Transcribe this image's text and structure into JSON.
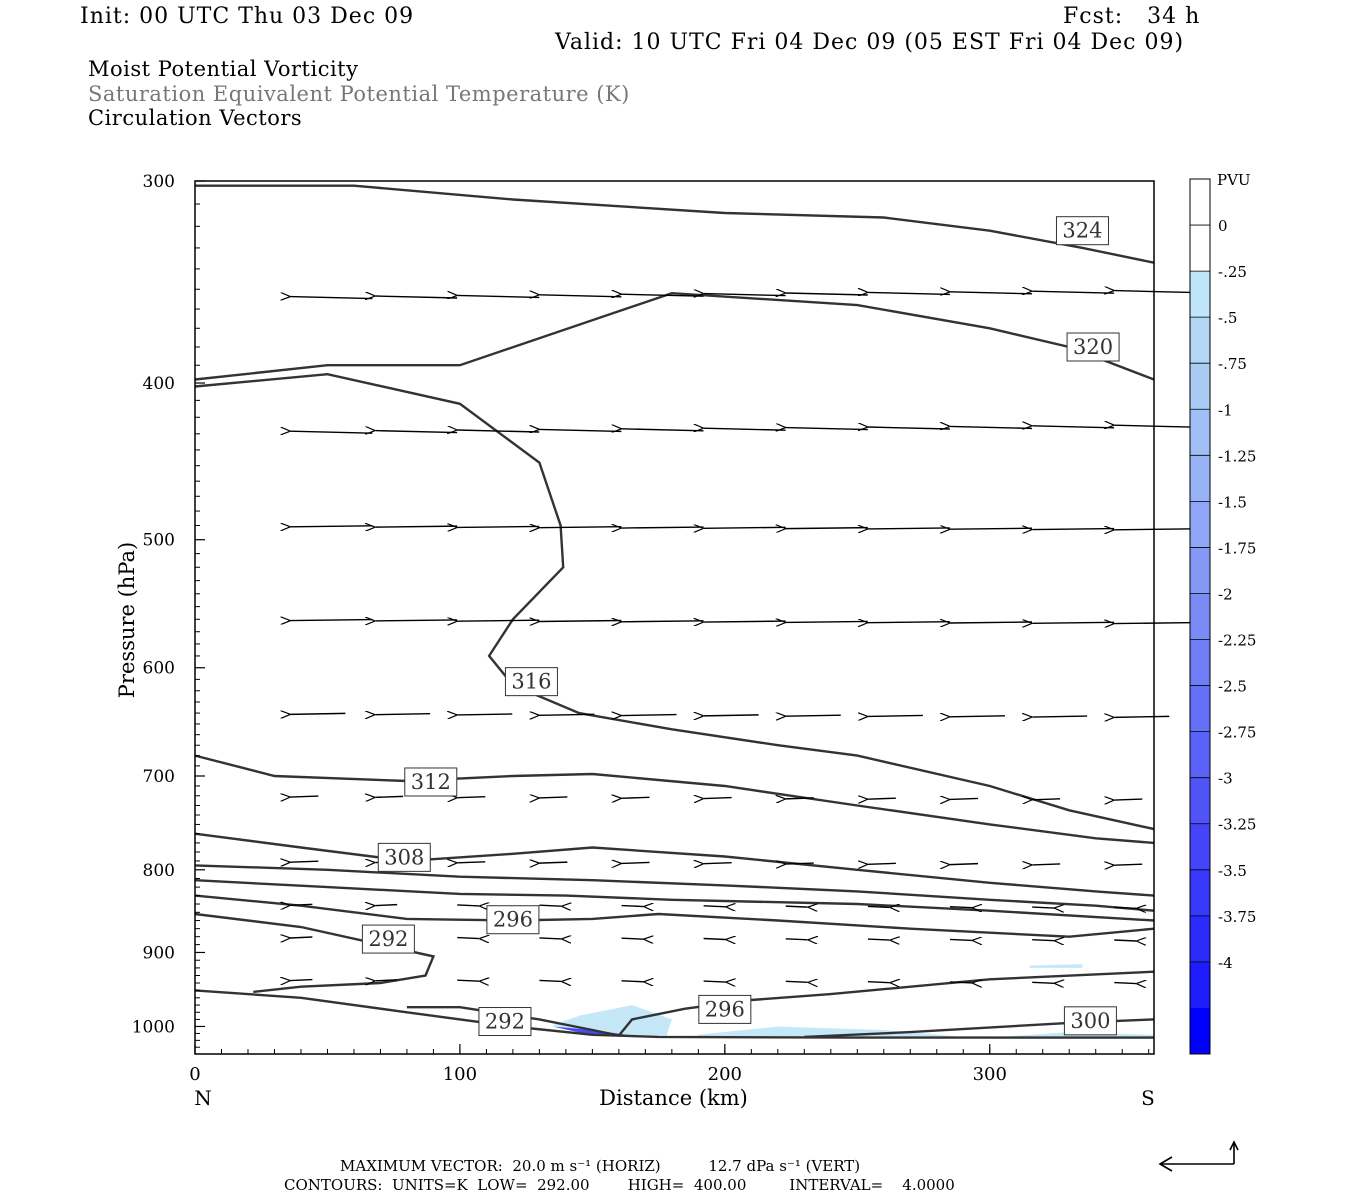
{
  "header": {
    "init": "Init: 00 UTC Thu 03 Dec 09",
    "fcst": "Fcst:   34 h",
    "valid": "Valid: 10 UTC Fri 04 Dec 09 (05 EST Fri 04 Dec 09)"
  },
  "titles": [
    "Moist Potential Vorticity",
    "Saturation Equivalent Potential Temperature (K)",
    "Circulation Vectors"
  ],
  "colors": {
    "contour": "#333333",
    "vector": "#000000",
    "title_secondary": "#777777"
  },
  "chart_data": {
    "type": "cross-section",
    "xlabel": "Distance (km)",
    "ylabel": "Pressure (hPa)",
    "xlim": [
      0,
      362
    ],
    "ylim": [
      1040,
      300
    ],
    "y_scale": "log-pressure",
    "x_ticks": [
      0,
      100,
      200,
      300
    ],
    "y_ticks": [
      300,
      400,
      500,
      600,
      700,
      800,
      900,
      1000
    ],
    "endpoint_labels": {
      "left": "N",
      "right": "S"
    },
    "colorbar": {
      "unit": "PVU",
      "labels": [
        "0",
        "-.25",
        "-.5",
        "-.75",
        "-1",
        "-1.25",
        "-1.5",
        "-1.75",
        "-2",
        "-2.25",
        "-2.5",
        "-2.75",
        "-3",
        "-3.25",
        "-3.5",
        "-3.75",
        "-4"
      ],
      "colors": [
        "#ffffff",
        "#ffffff",
        "#bfe6f8",
        "#b2d6f4",
        "#a9cbf3",
        "#a1bff4",
        "#98b3f5",
        "#8ea6f5",
        "#8499f6",
        "#7a8bf6",
        "#707df6",
        "#656ff7",
        "#5a62f7",
        "#4f53f8",
        "#4444f9",
        "#3838fa",
        "#2b2bfb",
        "#1c1cfc",
        "#0000ff"
      ]
    },
    "contours": [
      {
        "label": "324",
        "points": [
          [
            0,
            302
          ],
          [
            60,
            302
          ],
          [
            120,
            308
          ],
          [
            200,
            314
          ],
          [
            260,
            316
          ],
          [
            300,
            322
          ],
          [
            335,
            330
          ],
          [
            362,
            337
          ]
        ]
      },
      {
        "label": "320",
        "points": [
          [
            0,
            398
          ],
          [
            50,
            390
          ],
          [
            100,
            390
          ],
          [
            180,
            352
          ],
          [
            250,
            358
          ],
          [
            300,
            370
          ],
          [
            330,
            380
          ],
          [
            362,
            398
          ]
        ]
      },
      {
        "label": "316",
        "points": [
          [
            0,
            402
          ],
          [
            50,
            395
          ],
          [
            100,
            412
          ],
          [
            130,
            448
          ],
          [
            138,
            490
          ],
          [
            139,
            520
          ],
          [
            120,
            560
          ],
          [
            111,
            590
          ],
          [
            120,
            615
          ],
          [
            145,
            640
          ],
          [
            180,
            655
          ],
          [
            220,
            670
          ],
          [
            250,
            680
          ],
          [
            300,
            710
          ],
          [
            330,
            735
          ],
          [
            362,
            755
          ]
        ]
      },
      {
        "label": "312",
        "points": [
          [
            0,
            680
          ],
          [
            30,
            700
          ],
          [
            80,
            705
          ],
          [
            120,
            700
          ],
          [
            150,
            698
          ],
          [
            200,
            710
          ],
          [
            250,
            730
          ],
          [
            300,
            750
          ],
          [
            340,
            765
          ],
          [
            362,
            770
          ]
        ]
      },
      {
        "label": "308",
        "points": [
          [
            0,
            760
          ],
          [
            40,
            775
          ],
          [
            80,
            790
          ],
          [
            120,
            782
          ],
          [
            150,
            775
          ],
          [
            200,
            785
          ],
          [
            250,
            800
          ],
          [
            300,
            815
          ],
          [
            340,
            825
          ],
          [
            362,
            830
          ]
        ]
      },
      {
        "label": "",
        "points": [
          [
            0,
            795
          ],
          [
            50,
            800
          ],
          [
            100,
            808
          ],
          [
            150,
            812
          ],
          [
            200,
            818
          ],
          [
            250,
            825
          ],
          [
            300,
            835
          ],
          [
            340,
            842
          ],
          [
            362,
            848
          ]
        ]
      },
      {
        "label": "",
        "points": [
          [
            0,
            812
          ],
          [
            50,
            820
          ],
          [
            100,
            828
          ],
          [
            140,
            830
          ],
          [
            180,
            835
          ],
          [
            250,
            840
          ],
          [
            300,
            848
          ],
          [
            362,
            860
          ]
        ]
      },
      {
        "label": "296",
        "points": [
          [
            0,
            830
          ],
          [
            40,
            842
          ],
          [
            80,
            858
          ],
          [
            120,
            860
          ],
          [
            150,
            858
          ],
          [
            175,
            852
          ],
          [
            220,
            860
          ],
          [
            270,
            870
          ],
          [
            330,
            880
          ],
          [
            362,
            870
          ]
        ]
      },
      {
        "label": "292",
        "points": [
          [
            0,
            852
          ],
          [
            40,
            868
          ],
          [
            70,
            890
          ],
          [
            90,
            905
          ],
          [
            87,
            930
          ],
          [
            70,
            940
          ],
          [
            40,
            945
          ],
          [
            22,
            952
          ]
        ]
      },
      {
        "label": "292",
        "points": [
          [
            0,
            950
          ],
          [
            40,
            960
          ],
          [
            80,
            980
          ],
          [
            120,
            1000
          ],
          [
            150,
            1012
          ],
          [
            175,
            1015
          ],
          [
            250,
            1016
          ],
          [
            362,
            1016
          ]
        ]
      },
      {
        "label": "296",
        "points": [
          [
            80,
            973
          ],
          [
            100,
            973
          ],
          [
            130,
            990
          ],
          [
            150,
            1005
          ],
          [
            160,
            1013
          ],
          [
            165,
            990
          ],
          [
            185,
            975
          ],
          [
            210,
            963
          ],
          [
            240,
            955
          ],
          [
            300,
            935
          ],
          [
            362,
            925
          ]
        ]
      },
      {
        "label": "300",
        "points": [
          [
            230,
            1015
          ],
          [
            270,
            1008
          ],
          [
            330,
            995
          ],
          [
            362,
            990
          ]
        ]
      }
    ],
    "pv_shading": [
      {
        "value": -0.5,
        "region": [
          [
            135,
            998
          ],
          [
            145,
            985
          ],
          [
            165,
            970
          ],
          [
            180,
            990
          ],
          [
            178,
            1013
          ],
          [
            150,
            1012
          ]
        ]
      },
      {
        "value": -2.75,
        "region": [
          [
            135,
            1000
          ],
          [
            150,
            1005
          ],
          [
            165,
            1013
          ],
          [
            150,
            1013
          ]
        ]
      },
      {
        "value": -0.5,
        "region": [
          [
            190,
            1012
          ],
          [
            220,
            1000
          ],
          [
            260,
            1005
          ],
          [
            290,
            1015
          ],
          [
            190,
            1015
          ]
        ]
      },
      {
        "value": -0.5,
        "region": [
          [
            300,
            1016
          ],
          [
            330,
            1008
          ],
          [
            362,
            1012
          ],
          [
            362,
            1018
          ],
          [
            300,
            1018
          ]
        ]
      },
      {
        "value": -0.5,
        "region": [
          [
            315,
            917
          ],
          [
            335,
            915
          ],
          [
            335,
            920
          ],
          [
            315,
            920
          ]
        ]
      }
    ],
    "vectors": {
      "max_horiz": "20.0 m s-1",
      "max_vert": "12.7 dPa s-1"
    }
  },
  "footer": {
    "max_vector_line": "MAXIMUM VECTOR:  20.0 m s⁻¹ (HORIZ)          12.7 dPa s⁻¹ (VERT)",
    "contours_line": "CONTOURS:  UNITS=K  LOW=  292.00        HIGH=  400.00         INTERVAL=    4.0000"
  }
}
